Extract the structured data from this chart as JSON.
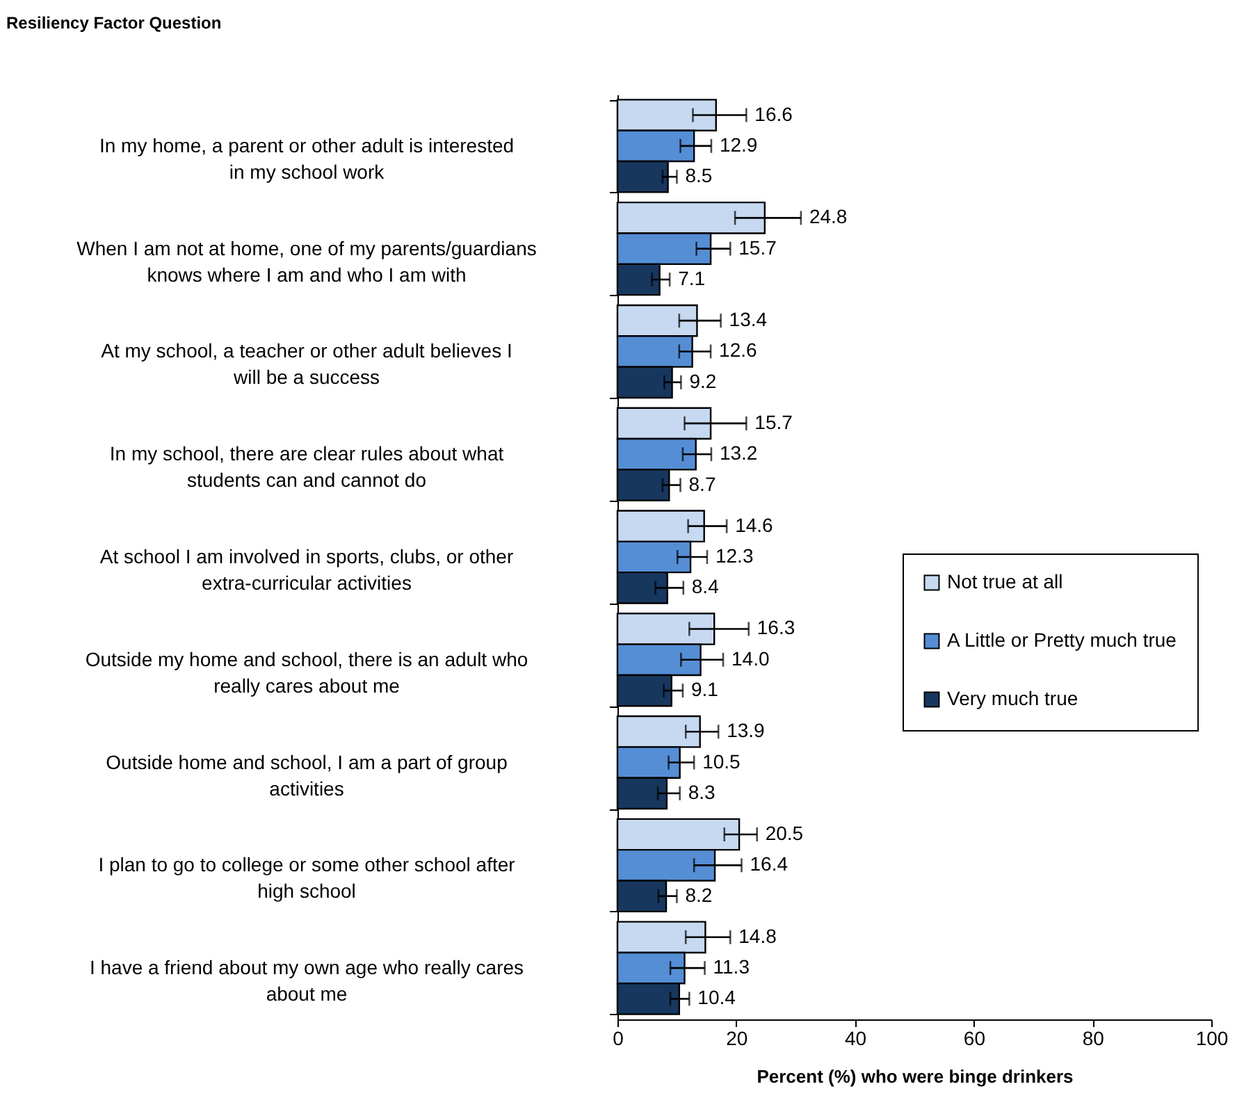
{
  "chart_data": {
    "type": "bar",
    "orientation": "horizontal",
    "ylabel": "Resiliency Factor Question",
    "xlabel": "Percent (%) who were binge drinkers",
    "categories": [
      "In my home, a parent or other adult is interested in my school work",
      "When I am not at home, one of my parents/guardians knows where I am and who I am with",
      "At my school, a teacher or other adult believes I will be a success",
      "In my school, there are clear rules about what students can and cannot do",
      "At school I am involved in sports, clubs, or other extra-curricular activities",
      "Outside my home and school, there is an adult who really cares about me",
      "Outside home and school, I am a part of group activities",
      "I plan to go to college or some other school after high school",
      "I have a friend about my own age who really cares about me"
    ],
    "series": [
      {
        "name": "Not true at all",
        "color": "#c6d9f1",
        "values": [
          16.6,
          24.8,
          13.4,
          15.7,
          14.6,
          16.3,
          13.9,
          20.5,
          14.8
        ],
        "value_labels": [
          "16.6",
          "24.8",
          "13.4",
          "15.7",
          "14.6",
          "16.3",
          "13.9",
          "20.5",
          "14.8"
        ],
        "errors": [
          [
            12.7,
            21.7
          ],
          [
            19.8,
            30.9
          ],
          [
            10.4,
            17.4
          ],
          [
            11.3,
            21.7
          ],
          [
            11.9,
            18.4
          ],
          [
            12.1,
            22.1
          ],
          [
            11.5,
            17.0
          ],
          [
            18.0,
            23.5
          ],
          [
            11.5,
            19.0
          ]
        ]
      },
      {
        "name": "A Little or Pretty much true",
        "color": "#558ed5",
        "values": [
          12.9,
          15.7,
          12.6,
          13.2,
          12.3,
          14.0,
          10.5,
          16.4,
          11.3
        ],
        "value_labels": [
          "12.9",
          "15.7",
          "12.6",
          "13.2",
          "12.3",
          "14.0",
          "10.5",
          "16.4",
          "11.3"
        ],
        "errors": [
          [
            10.6,
            15.8
          ],
          [
            13.3,
            19.0
          ],
          [
            10.4,
            15.7
          ],
          [
            11.0,
            15.8
          ],
          [
            10.1,
            15.1
          ],
          [
            10.7,
            17.8
          ],
          [
            8.6,
            12.9
          ],
          [
            12.9,
            20.9
          ],
          [
            8.9,
            14.7
          ]
        ]
      },
      {
        "name": "Very much true",
        "color": "#17375e",
        "values": [
          8.5,
          7.1,
          9.2,
          8.7,
          8.4,
          9.1,
          8.3,
          8.2,
          10.4
        ],
        "value_labels": [
          "8.5",
          "7.1",
          "9.2",
          "8.7",
          "8.4",
          "9.1",
          "8.3",
          "8.2",
          "10.4"
        ],
        "errors": [
          [
            7.6,
            10.0
          ],
          [
            5.8,
            8.8
          ],
          [
            7.9,
            10.7
          ],
          [
            7.6,
            10.6
          ],
          [
            6.4,
            11.1
          ],
          [
            7.8,
            11.0
          ],
          [
            6.8,
            10.5
          ],
          [
            6.9,
            10.0
          ],
          [
            8.9,
            12.1
          ]
        ]
      }
    ],
    "xlim": [
      0,
      100
    ],
    "xticks": [
      0,
      20,
      40,
      60,
      80,
      100
    ],
    "grid": false,
    "legend": "right"
  }
}
